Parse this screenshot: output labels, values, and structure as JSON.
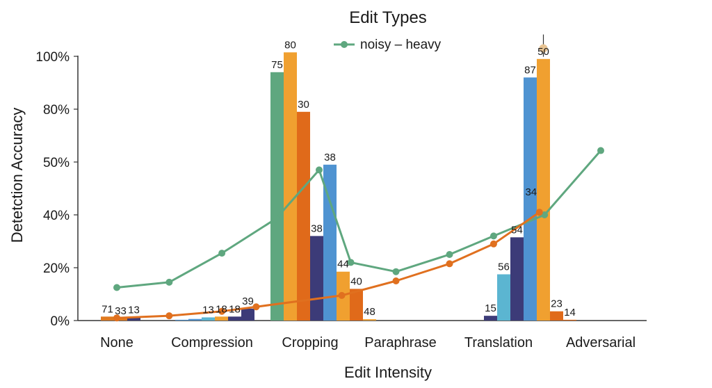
{
  "chart_data": {
    "type": "bar",
    "title": "Edit Types",
    "xlabel": "Edit Intensity",
    "ylabel": "Detetction Accuracy",
    "categories": [
      "None",
      "Compression",
      "Cropping",
      "Paraphrase",
      "Translation",
      "Adversarial"
    ],
    "y_ticks": [
      {
        "value": 0,
        "label": "0%"
      },
      {
        "value": 20,
        "label": "20%"
      },
      {
        "value": 40,
        "label": "40%"
      },
      {
        "value": 50,
        "label": "50%"
      },
      {
        "value": 80,
        "label": "80%"
      },
      {
        "value": 100,
        "label": "100%"
      }
    ],
    "ylim": [
      0,
      100
    ],
    "grid": false,
    "legend": {
      "position": "top-center",
      "entries": [
        {
          "label": "noisy – heavy",
          "color": "#5fa77f"
        }
      ]
    },
    "bars": [
      {
        "cat": 0,
        "slot": 0,
        "value": 1.5,
        "label": "71",
        "color": "#e07a1f"
      },
      {
        "cat": 0,
        "slot": 1,
        "value": 0.8,
        "label": "33",
        "color": "#e07a1f"
      },
      {
        "cat": 0,
        "slot": 2,
        "value": 1.2,
        "label": "13",
        "color": "#3c3b78"
      },
      {
        "cat": 1,
        "slot": 0,
        "value": 0.3,
        "label": "",
        "color": "#4f93d1"
      },
      {
        "cat": 1,
        "slot": 1,
        "value": 0.6,
        "label": "",
        "color": "#4f93d1"
      },
      {
        "cat": 1,
        "slot": 2,
        "value": 1.2,
        "label": "13",
        "color": "#5bb5d1"
      },
      {
        "cat": 1,
        "slot": 3,
        "value": 1.5,
        "label": "18",
        "color": "#f0a030"
      },
      {
        "cat": 1,
        "slot": 4,
        "value": 1.5,
        "label": "18",
        "color": "#3c3b78"
      },
      {
        "cat": 1,
        "slot": 5,
        "value": 4.5,
        "label": "39",
        "color": "#3c3b78"
      },
      {
        "cat": 2,
        "slot": 0,
        "value": 94,
        "label": "75",
        "color": "#5fa77f"
      },
      {
        "cat": 2,
        "slot": 1,
        "value": 101.5,
        "label": "80",
        "color": "#f0a030"
      },
      {
        "cat": 2,
        "slot": 2,
        "value": 78.5,
        "label": "30",
        "color": "#e06a1a"
      },
      {
        "cat": 2,
        "slot": 3,
        "value": 32,
        "label": "38",
        "color": "#3c3b78"
      },
      {
        "cat": 2,
        "slot": 4,
        "value": 49.5,
        "label": "38",
        "color": "#4f93d1"
      },
      {
        "cat": 2,
        "slot": 5,
        "value": 18.5,
        "label": "44",
        "color": "#f0a030"
      },
      {
        "cat": 2,
        "slot": 6,
        "value": 12,
        "label": "40",
        "color": "#e06a1a"
      },
      {
        "cat": 2,
        "slot": 7,
        "value": 0.5,
        "label": "48",
        "color": "#f0a030"
      },
      {
        "cat": 4,
        "slot": 0,
        "value": 1.8,
        "label": "15",
        "color": "#3c3b78"
      },
      {
        "cat": 4,
        "slot": 1,
        "value": 17.5,
        "label": "56",
        "color": "#5bb5d1"
      },
      {
        "cat": 4,
        "slot": 2,
        "value": 31.5,
        "label": "54",
        "color": "#3c3b78"
      },
      {
        "cat": 4,
        "slot": 3,
        "value": 92,
        "label": "87",
        "color": "#4f93d1"
      },
      {
        "cat": 4,
        "slot": 4,
        "value": 99,
        "label": "50",
        "color": "#f0a030"
      },
      {
        "cat": 4,
        "slot": 5,
        "value": 3.5,
        "label": "23",
        "color": "#e06a1a"
      },
      {
        "cat": 4,
        "slot": 6,
        "value": 0.3,
        "label": "14",
        "color": "#e06a1a"
      }
    ],
    "series": [
      {
        "name": "noisy – heavy",
        "type": "line",
        "color": "#5fa77f",
        "points": [
          {
            "x": 0.0,
            "y": 12.5
          },
          {
            "x": 0.55,
            "y": 14.5
          },
          {
            "x": 1.1,
            "y": 25.5
          },
          {
            "x": 1.65,
            "y": 38.5
          },
          {
            "x": 2.1,
            "y": 48.5
          },
          {
            "x": 2.45,
            "y": 22
          },
          {
            "x": 2.95,
            "y": 18.5
          },
          {
            "x": 3.5,
            "y": 25
          },
          {
            "x": 3.95,
            "y": 32
          },
          {
            "x": 4.45,
            "y": 40
          },
          {
            "x": 5.0,
            "y": 56.5
          }
        ]
      },
      {
        "type": "line",
        "color": "#e0701f",
        "points": [
          {
            "x": 0.0,
            "y": 1
          },
          {
            "x": 0.55,
            "y": 1.8
          },
          {
            "x": 1.1,
            "y": 3.5
          },
          {
            "x": 1.45,
            "y": 5.2
          },
          {
            "x": 2.35,
            "y": 9.5
          },
          {
            "x": 2.95,
            "y": 15
          },
          {
            "x": 3.5,
            "y": 21.5
          },
          {
            "x": 3.95,
            "y": 29
          },
          {
            "x": 4.4,
            "y": 40.5
          }
        ],
        "point_label": {
          "index": 8,
          "label": "34"
        }
      }
    ],
    "extra_marker": {
      "cat": 4,
      "slot": 4,
      "y": 103,
      "color": "#e8c493"
    }
  }
}
